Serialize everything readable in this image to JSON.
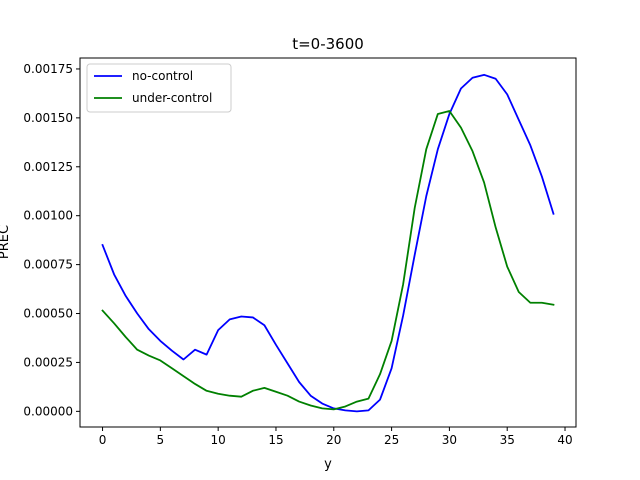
{
  "chart_data": {
    "type": "line",
    "title": "t=0-3600",
    "xlabel": "y",
    "ylabel": "PREC",
    "xlim": [
      -1.95,
      40.95
    ],
    "ylim": [
      -8e-05,
      0.001806
    ],
    "x_ticks": [
      0,
      5,
      10,
      15,
      20,
      25,
      30,
      35,
      40
    ],
    "x_tick_labels": [
      "0",
      "5",
      "10",
      "15",
      "20",
      "25",
      "30",
      "35",
      "40"
    ],
    "y_ticks": [
      0,
      0.00025,
      0.0005,
      0.00075,
      0.001,
      0.00125,
      0.0015,
      0.00175
    ],
    "y_tick_labels": [
      "0.00000",
      "0.00025",
      "0.00050",
      "0.00075",
      "0.00100",
      "0.00125",
      "0.00150",
      "0.00175"
    ],
    "grid": false,
    "legend_position": "top-left",
    "x": [
      0,
      1,
      2,
      3,
      4,
      5,
      6,
      7,
      8,
      9,
      10,
      11,
      12,
      13,
      14,
      15,
      16,
      17,
      18,
      19,
      20,
      21,
      22,
      23,
      24,
      25,
      26,
      27,
      28,
      29,
      30,
      31,
      32,
      33,
      34,
      35,
      36,
      37,
      38,
      39
    ],
    "series": [
      {
        "name": "no-control",
        "color": "#0000ff",
        "values": [
          0.00085,
          0.0007,
          0.00059,
          0.0005,
          0.00042,
          0.00036,
          0.00031,
          0.000265,
          0.000315,
          0.00029,
          0.000415,
          0.00047,
          0.000485,
          0.00048,
          0.00044,
          0.00034,
          0.000245,
          0.00015,
          8e-05,
          4e-05,
          1.5e-05,
          5e-06,
          0.0,
          5e-06,
          6e-05,
          0.00022,
          0.00049,
          0.0008,
          0.0011,
          0.00134,
          0.00152,
          0.00165,
          0.001705,
          0.00172,
          0.0017,
          0.00162,
          0.00149,
          0.00136,
          0.0012,
          0.00101
        ]
      },
      {
        "name": "under-control",
        "color": "#008000",
        "values": [
          0.000515,
          0.00045,
          0.00038,
          0.000315,
          0.000285,
          0.00026,
          0.00022,
          0.00018,
          0.00014,
          0.000105,
          9e-05,
          8e-05,
          7.5e-05,
          0.000105,
          0.00012,
          0.0001,
          8e-05,
          5e-05,
          3e-05,
          1.5e-05,
          1e-05,
          2.5e-05,
          5e-05,
          6.5e-05,
          0.00019,
          0.00036,
          0.00065,
          0.00104,
          0.00134,
          0.00152,
          0.001535,
          0.00145,
          0.00133,
          0.00117,
          0.00094,
          0.00074,
          0.00061,
          0.000555,
          0.000555,
          0.000545
        ]
      }
    ]
  }
}
